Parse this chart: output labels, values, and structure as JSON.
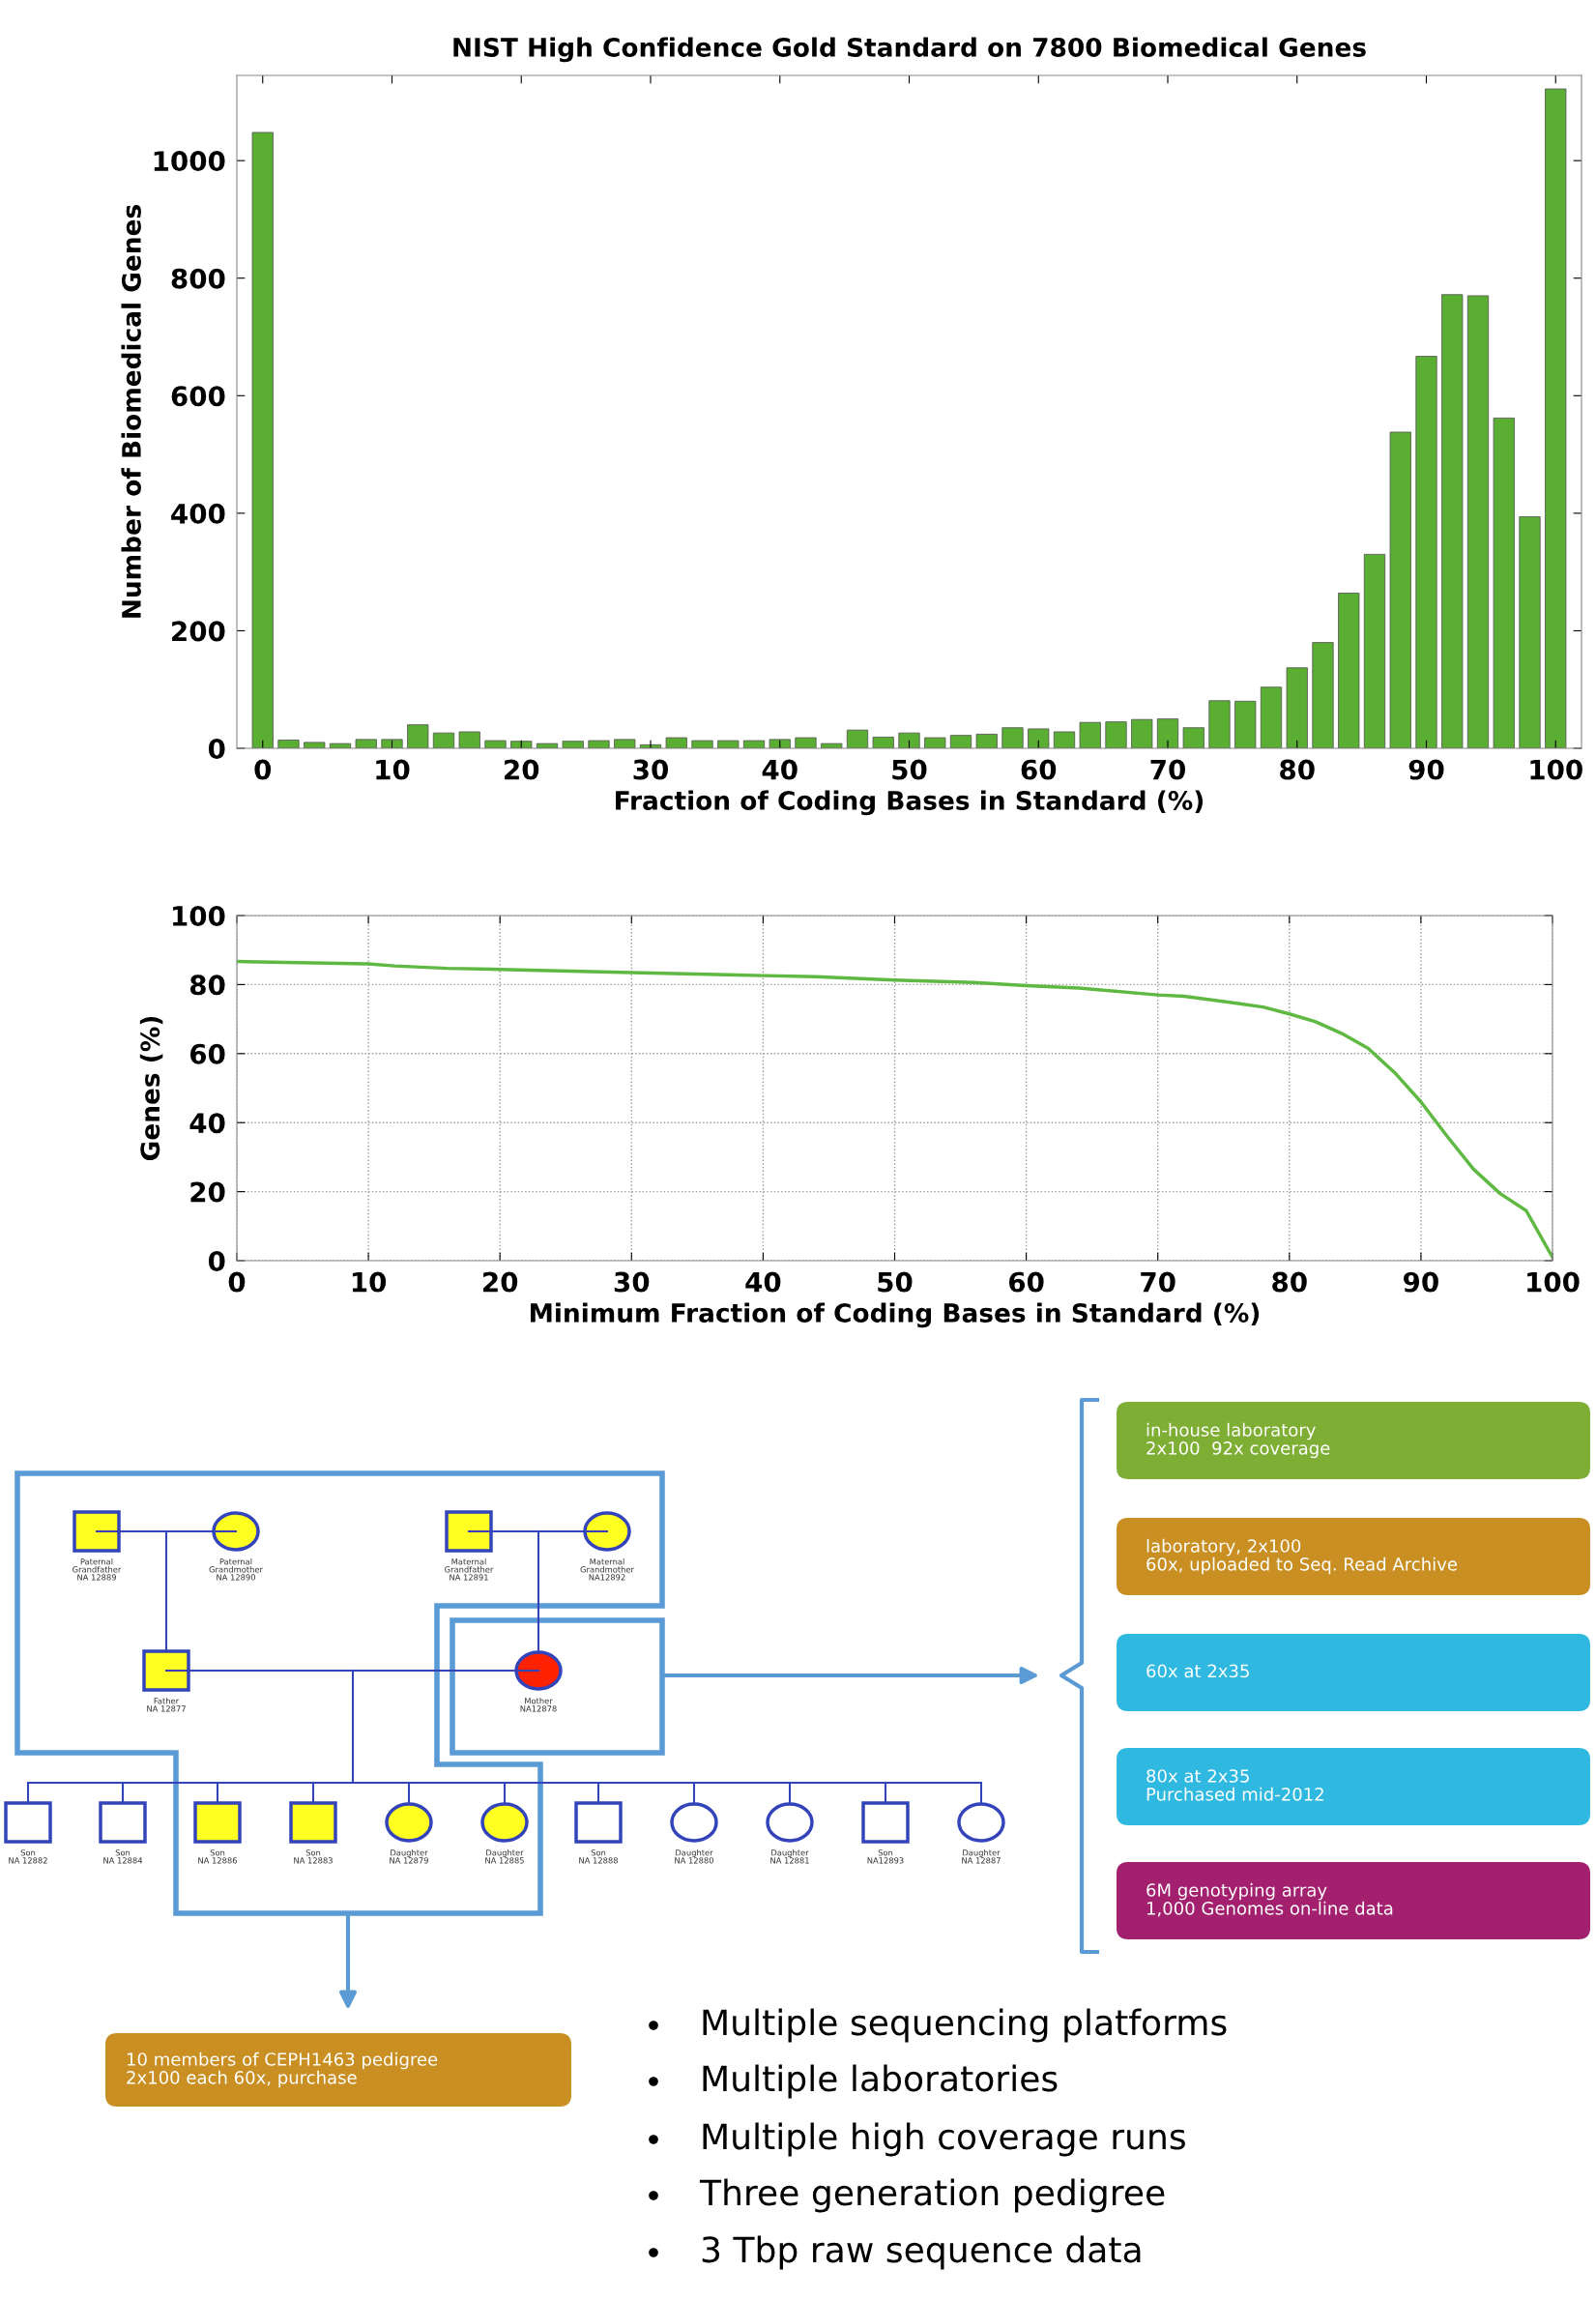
{
  "chart_data": [
    {
      "type": "bar",
      "title": "NIST High Confidence Gold Standard on 7800 Biomedical Genes",
      "xlabel": "Fraction of Coding Bases in Standard (%)",
      "ylabel": "Number of Biomedical Genes",
      "color": "#5aaf32",
      "x": [
        0,
        2,
        4,
        6,
        8,
        10,
        12,
        14,
        16,
        18,
        20,
        22,
        24,
        26,
        28,
        30,
        32,
        34,
        36,
        38,
        40,
        42,
        44,
        46,
        48,
        50,
        52,
        54,
        56,
        58,
        60,
        62,
        64,
        66,
        68,
        70,
        72,
        74,
        76,
        78,
        80,
        82,
        84,
        86,
        88,
        90,
        92,
        94,
        96,
        98,
        100
      ],
      "values": [
        1048,
        14,
        10,
        8,
        15,
        15,
        40,
        26,
        28,
        13,
        12,
        8,
        12,
        13,
        15,
        6,
        18,
        13,
        13,
        13,
        15,
        18,
        8,
        31,
        19,
        26,
        18,
        22,
        24,
        35,
        33,
        28,
        44,
        45,
        49,
        50,
        35,
        81,
        80,
        104,
        137,
        180,
        264,
        330,
        538,
        667,
        772,
        770,
        562,
        394,
        1122
      ],
      "xlim": [
        -2,
        102
      ],
      "ylim": [
        0,
        1145
      ],
      "xticks": [
        0,
        10,
        20,
        30,
        40,
        50,
        60,
        70,
        80,
        90,
        100
      ],
      "yticks": [
        0,
        200,
        400,
        600,
        800,
        1000
      ],
      "grid": false
    },
    {
      "type": "line",
      "xlabel": "Minimum Fraction of Coding Bases in Standard (%)",
      "ylabel": "Genes (%)",
      "color": "#5fb842",
      "x": [
        0,
        10,
        12,
        16,
        20,
        30,
        40,
        44,
        50,
        56,
        60,
        64,
        70,
        72,
        76,
        78,
        80,
        82,
        84,
        86,
        88,
        90,
        92,
        94,
        96,
        98,
        100
      ],
      "values": [
        86.7,
        86,
        85.4,
        84.7,
        84.4,
        83.5,
        82.6,
        82.3,
        81.3,
        80.6,
        79.7,
        79,
        77,
        76.6,
        74.6,
        73.5,
        71.5,
        69.2,
        65.8,
        61.5,
        54.5,
        46,
        36,
        26.5,
        19.5,
        14.5,
        1
      ],
      "xlim": [
        0,
        100
      ],
      "ylim": [
        0,
        100
      ],
      "xticks": [
        0,
        10,
        20,
        30,
        40,
        50,
        60,
        70,
        80,
        90,
        100
      ],
      "yticks": [
        0,
        20,
        40,
        60,
        80,
        100
      ],
      "grid": true,
      "line_style": "solid",
      "marker": "none"
    },
    {
      "type": "other",
      "annotations": [
        "Paternal\nGrandfather\nNA 12889",
        "Paternal\nGrandmother\nNA 12890",
        "Maternal\nGrandfather\nNA 12891",
        "Maternal\nGrandmother\nNA12892",
        "Father\nNA 12877",
        "Mother\nNA12878",
        "Son\nNA 12882",
        "Son\nNA 12884",
        "Son\nNA 12886",
        "Son\nNA 12883",
        "Daughter\nNA 12879",
        "Daughter\nNA 12885",
        "Son\nNA 12888",
        "Daughter\nNA 12880",
        "Daughter\nNA 12881",
        "Son\nNA12893",
        "Daughter\nNA 12887",
        "in-house laboratory\n2x100  92x coverage",
        "laboratory, 2x100\n60x, uploaded to Seq. Read Archive",
        "60x at 2x35",
        "80x at 2x35\nPurchased mid-2012",
        "6M genotyping array\n1,000 Genomes on-line data",
        "10 members of CEPH1463 pedigree\n2x100 each 60x, purchase",
        "Multiple sequencing platforms",
        "Multiple laboratories",
        "Multiple high coverage runs",
        "Three generation pedigree",
        "3 Tbp raw sequence data"
      ]
    }
  ]
}
